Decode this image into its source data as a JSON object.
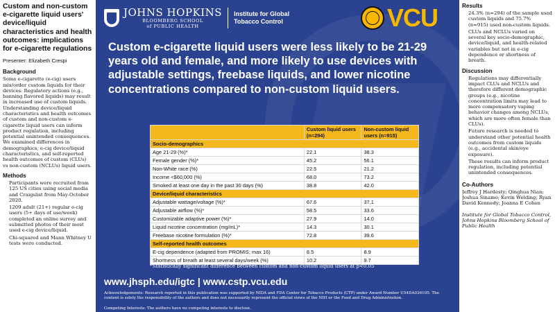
{
  "left": {
    "title": "Custom and non-custom e-cigarette liquid users' device/liquid characteristics and health outcomes: implications for e-cigarette regulations",
    "presenter": "Presenter: Elizabeth Crespi",
    "background_heading": "Background",
    "background_text": "Some e-cigarette (e-cig) users mix/order custom liquids for their devices. Regulatory actions (e.g., banning flavored liquids) may result in increased use of custom liquids. Understanding device/liquid characteristics and health outcomes of custom and non-custom e-cigarette liquid users can inform product regulation, including potential unintended consequences. We examined differences in demographics, e-cig device/liquid characteristics, and self-reported health outcomes of custom (CLUs) vs non-custom (NCLUs) liquid users.",
    "methods_heading": "Methods",
    "methods": [
      "Participants were recruited from 125 US cities using social media and Craigslist from May-October 2020.",
      "1209 adult (21+) regular e-cig users (5+ days of use/week) completed an online survey and submitted photos of their most used e-cig device/liquid.",
      "Chi-squared and Mann Whitney U tests were conducted."
    ]
  },
  "center": {
    "jh_name": "JOHNS HOPKINS",
    "jh_sub1": "BLOOMBERG SCHOOL",
    "jh_sub2": "of PUBLIC HEALTH",
    "jh_inst1": "Institute for Global",
    "jh_inst2": "Tobacco Control",
    "vcu": "VCU",
    "headline": "Custom e-cigarette liquid users were less likely to be 21-29 years old and female, and more likely to use devices with adjustable settings, freebase liquids, and lower nicotine concentrations compared to non-custom liquid users.",
    "table": {
      "col1": "",
      "col2": "Custom liquid users (n=294)",
      "col3": "Non-custom liquid users (n=915)",
      "sections": [
        {
          "name": "Socio-demographics",
          "rows": [
            {
              "label": "Age 21-29 (%)*",
              "custom": "22.1",
              "noncustom": "38.3"
            },
            {
              "label": "Female gender (%)*",
              "custom": "45.2",
              "noncustom": "56.1"
            },
            {
              "label": "Non-White race (%)",
              "custom": "22.5",
              "noncustom": "21.2"
            },
            {
              "label": "Income <$60,000 (%)",
              "custom": "68.0",
              "noncustom": "73.2"
            },
            {
              "label": "Smoked at least one day in the past 30 days (%)",
              "custom": "38.8",
              "noncustom": "42.0"
            }
          ]
        },
        {
          "name": "Device/liquid characteristics",
          "rows": [
            {
              "label": "Adjustable wattage/voltage (%)*",
              "custom": "67.6",
              "noncustom": "37.1"
            },
            {
              "label": "Adjustable airflow (%)*",
              "custom": "58.5",
              "noncustom": "33.6"
            },
            {
              "label": "Customizable adaptive power (%)*",
              "custom": "27.9",
              "noncustom": "14.0"
            },
            {
              "label": "Liquid nicotine concentration (mg/mL)*",
              "custom": "14.3",
              "noncustom": "30.1"
            },
            {
              "label": "Freebase nicotine formulation (%)*",
              "custom": "72.8",
              "noncustom": "39.6"
            }
          ]
        },
        {
          "name": "Self-reported health outcomes",
          "rows": [
            {
              "label": "E-cig dependence (adapted from PROMIS; max 16)",
              "custom": "8.5",
              "noncustom": "8.9"
            },
            {
              "label": "Shortness of breath at least several days/week (%)",
              "custom": "10.2",
              "noncustom": "9.7"
            }
          ]
        }
      ]
    },
    "footnote": "*Statistically significant difference between custom and non-custom liquid users at p<0.05",
    "urls": "www.jhsph.edu/igtc | www.cstp.vcu.edu",
    "ack": "Acknowledgements: Research reported in this publication was supported by NIDA and FDA Center for Tobacco Products (CTP) under Award Number U54DA036105. The content is solely the responsibility of the authors and does not necessarily represent the official views of the NIH or the Food and Drug Administration.",
    "competing": "Competing Interests: The authors have no competing interests to disclose."
  },
  "right": {
    "results_heading": "Results",
    "results": [
      "24.3% (n=294) of the sample used custom liquids and 75.7% (n=915) used non-custom liquids.",
      "CLUs and NCLUs varied on several key socio-demographic, device/liquid, and health-related variables but not in e-cig dependence or shortness of breath."
    ],
    "discussion_heading": "Discussion",
    "discussion": [
      "Regulations may differentially impact CLUs and NCLUs and therefore different demographic groups (e.g., nicotine concentration limits may lead to more compensatory vaping behavior changes among NCLUs, which are more often female than CLUs).",
      "Future research is needed to understand other potential health outcomes from custom liquids (e.g., accidental skin/eye exposure).",
      "These results can inform product regulation, including potential unintended consequences."
    ],
    "coauthors_heading": "Co-Authors",
    "coauthors": "Jeffrey J Hardesty; Qinghua Nian; Joshua Sinamo; Kevin Welding; Ryan David Kennedy; Joanna E Cohen",
    "institution": "Institute for Global Tobacco Control, Johns Hopkins Bloomberg School of Public Health"
  }
}
